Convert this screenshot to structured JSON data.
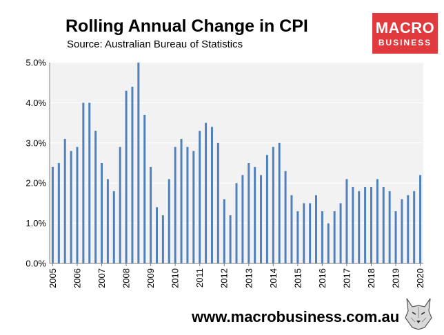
{
  "header": {
    "title": "Rolling Annual Change in CPI",
    "subtitle": "Source: Australian Bureau of Statistics"
  },
  "logo": {
    "line1": "MACRO",
    "line2": "BUSINESS",
    "color": "#e03a3e"
  },
  "footer": {
    "url": "www.macrobusiness.com.au",
    "mascot_icon": "wolf-icon"
  },
  "colors": {
    "bar": "#4f81bd",
    "plot_background": "#f2f2f2",
    "grid": "#ffffff",
    "axis": "#808080"
  },
  "chart_data": {
    "type": "bar",
    "title": "Rolling Annual Change in CPI",
    "xlabel": "",
    "ylabel": "",
    "ylim": [
      0,
      5
    ],
    "yticks": [
      "0.0%",
      "1.0%",
      "2.0%",
      "3.0%",
      "4.0%",
      "5.0%"
    ],
    "xticks": [
      "2005",
      "2006",
      "2007",
      "2008",
      "2009",
      "2010",
      "2011",
      "2012",
      "2013",
      "2014",
      "2015",
      "2016",
      "2017",
      "2018",
      "2019",
      "2020"
    ],
    "x_start_year": 2005,
    "periods_per_year": 4,
    "values": [
      2.4,
      2.5,
      3.1,
      2.8,
      2.9,
      4.0,
      4.0,
      3.3,
      2.5,
      2.1,
      1.8,
      2.9,
      4.3,
      4.4,
      5.0,
      3.7,
      2.4,
      1.4,
      1.2,
      2.1,
      2.9,
      3.1,
      2.9,
      2.8,
      3.3,
      3.5,
      3.4,
      3.0,
      1.6,
      1.2,
      2.0,
      2.2,
      2.5,
      2.4,
      2.2,
      2.7,
      2.9,
      3.0,
      2.3,
      1.7,
      1.3,
      1.5,
      1.5,
      1.7,
      1.3,
      1.0,
      1.3,
      1.5,
      2.1,
      1.9,
      1.8,
      1.9,
      1.9,
      2.1,
      1.9,
      1.8,
      1.3,
      1.6,
      1.7,
      1.8,
      2.2
    ]
  }
}
